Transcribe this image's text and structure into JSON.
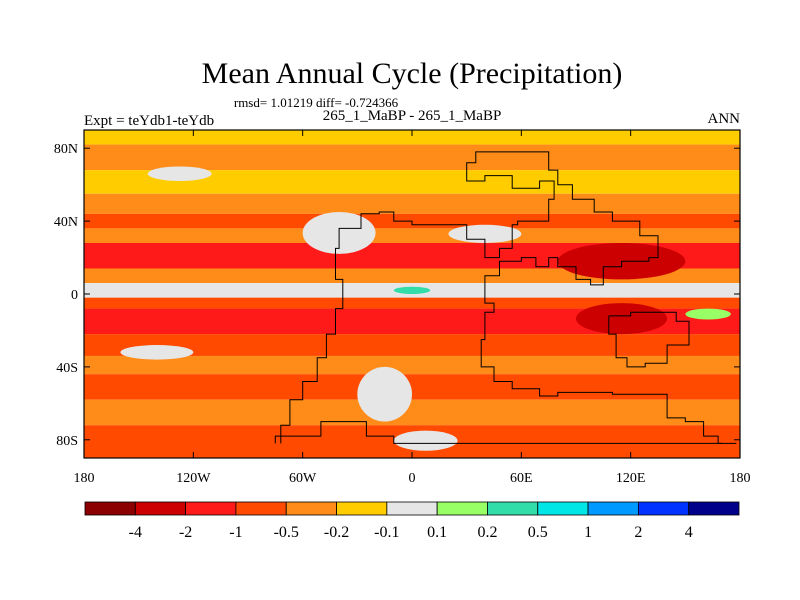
{
  "chart_data": {
    "type": "heatmap",
    "title": "Mean Annual Cycle (Precipitation)",
    "stats": "rmsd= 1.01219 diff= -0.724366",
    "left_label": "Expt = teYdb1-teYdb",
    "center_label": "265_1_MaBP - 265_1_MaBP",
    "right_label": "ANN",
    "xlim": [
      -180,
      180
    ],
    "ylim": [
      -90,
      90
    ],
    "x_ticks": [
      {
        "value": -180,
        "label": "180"
      },
      {
        "value": -120,
        "label": "120W"
      },
      {
        "value": -60,
        "label": "60W"
      },
      {
        "value": 0,
        "label": "0"
      },
      {
        "value": 60,
        "label": "60E"
      },
      {
        "value": 120,
        "label": "120E"
      },
      {
        "value": 180,
        "label": "180"
      }
    ],
    "y_ticks": [
      {
        "value": 80,
        "label": "80N"
      },
      {
        "value": 40,
        "label": "40N"
      },
      {
        "value": 0,
        "label": "0"
      },
      {
        "value": -40,
        "label": "40S"
      },
      {
        "value": -80,
        "label": "80S"
      }
    ],
    "colorbar": {
      "colors": [
        "#8b0000",
        "#cc0000",
        "#ff1a1a",
        "#ff4a00",
        "#ff8c19",
        "#ffcc00",
        "#e6e6e6",
        "#99ff66",
        "#33ddaa",
        "#00e5e5",
        "#0099ff",
        "#0033ff",
        "#00008b"
      ],
      "labels": [
        "-4",
        "-2",
        "-1",
        "-0.5",
        "-0.2",
        "-0.1",
        "0.1",
        "0.2",
        "0.5",
        "1",
        "2",
        "4"
      ]
    },
    "bands": [
      {
        "lat_from": 90,
        "lat_to": 82,
        "level": 5
      },
      {
        "lat_from": 82,
        "lat_to": 68,
        "level": 4
      },
      {
        "lat_from": 68,
        "lat_to": 55,
        "level": 5
      },
      {
        "lat_from": 55,
        "lat_to": 44,
        "level": 4
      },
      {
        "lat_from": 44,
        "lat_to": 36,
        "level": 3
      },
      {
        "lat_from": 36,
        "lat_to": 28,
        "level": 4
      },
      {
        "lat_from": 28,
        "lat_to": 14,
        "level": 2
      },
      {
        "lat_from": 14,
        "lat_to": 6,
        "level": 4
      },
      {
        "lat_from": 6,
        "lat_to": -2,
        "level": 6
      },
      {
        "lat_from": -2,
        "lat_to": -8,
        "level": 3
      },
      {
        "lat_from": -8,
        "lat_to": -22,
        "level": 2
      },
      {
        "lat_from": -22,
        "lat_to": -34,
        "level": 3
      },
      {
        "lat_from": -34,
        "lat_to": -44,
        "level": 4
      },
      {
        "lat_from": -44,
        "lat_to": -58,
        "level": 3
      },
      {
        "lat_from": -58,
        "lat_to": -72,
        "level": 4
      },
      {
        "lat_from": -72,
        "lat_to": -90,
        "level": 3
      }
    ],
    "patches": [
      {
        "lon1": -60,
        "lon2": -20,
        "lat1": 45,
        "lat2": 22,
        "level": 6
      },
      {
        "lon1": -145,
        "lon2": -110,
        "lat1": 70,
        "lat2": 62,
        "level": 6
      },
      {
        "lon1": 20,
        "lon2": 60,
        "lat1": 38,
        "lat2": 28,
        "level": 6
      },
      {
        "lon1": -30,
        "lon2": 0,
        "lat1": -40,
        "lat2": -70,
        "level": 6
      },
      {
        "lon1": 80,
        "lon2": 150,
        "lat1": 28,
        "lat2": 8,
        "level": 1
      },
      {
        "lon1": 90,
        "lon2": 140,
        "lat1": -5,
        "lat2": -22,
        "level": 1
      },
      {
        "lon1": -160,
        "lon2": -120,
        "lat1": -28,
        "lat2": -36,
        "level": 6
      },
      {
        "lon1": -10,
        "lon2": 25,
        "lat1": -75,
        "lat2": -86,
        "level": 6
      },
      {
        "lon1": 150,
        "lon2": 175,
        "lat1": -8,
        "lat2": -14,
        "level": 7
      },
      {
        "lon1": -10,
        "lon2": 10,
        "lat1": 4,
        "lat2": 0,
        "level": 8
      }
    ],
    "coastlines": [
      [
        [
          -72,
          -82
        ],
        [
          -67,
          -72
        ],
        [
          -60,
          -58
        ],
        [
          -52,
          -48
        ],
        [
          -47,
          -35
        ],
        [
          -42,
          -22
        ],
        [
          -38,
          -8
        ],
        [
          -42,
          8
        ],
        [
          -40,
          25
        ],
        [
          -28,
          36
        ],
        [
          -18,
          44
        ],
        [
          -10,
          45
        ],
        [
          0,
          40
        ],
        [
          18,
          38
        ],
        [
          30,
          38
        ],
        [
          40,
          30
        ],
        [
          48,
          20
        ],
        [
          55,
          25
        ],
        [
          58,
          38
        ],
        [
          75,
          40
        ],
        [
          78,
          52
        ],
        [
          70,
          62
        ],
        [
          55,
          58
        ],
        [
          40,
          65
        ],
        [
          30,
          62
        ],
        [
          35,
          72
        ],
        [
          55,
          78
        ],
        [
          75,
          78
        ],
        [
          80,
          68
        ],
        [
          88,
          60
        ],
        [
          100,
          52
        ],
        [
          110,
          45
        ],
        [
          125,
          40
        ],
        [
          135,
          32
        ],
        [
          130,
          20
        ],
        [
          115,
          18
        ],
        [
          105,
          15
        ],
        [
          98,
          5
        ],
        [
          90,
          8
        ],
        [
          80,
          15
        ],
        [
          75,
          20
        ],
        [
          68,
          15
        ],
        [
          60,
          20
        ],
        [
          48,
          18
        ],
        [
          40,
          10
        ],
        [
          45,
          -5
        ],
        [
          40,
          -10
        ],
        [
          38,
          -25
        ],
        [
          45,
          -40
        ],
        [
          55,
          -48
        ],
        [
          70,
          -52
        ],
        [
          80,
          -56
        ],
        [
          110,
          -54
        ],
        [
          125,
          -55
        ],
        [
          140,
          -55
        ],
        [
          150,
          -68
        ],
        [
          160,
          -70
        ],
        [
          168,
          -78
        ],
        [
          170,
          -82
        ]
      ],
      [
        [
          108,
          -12
        ],
        [
          112,
          -22
        ],
        [
          118,
          -35
        ],
        [
          128,
          -40
        ],
        [
          140,
          -38
        ],
        [
          152,
          -28
        ],
        [
          145,
          -15
        ],
        [
          135,
          -10
        ],
        [
          120,
          -10
        ],
        [
          108,
          -12
        ]
      ],
      [
        [
          -75,
          -82
        ],
        [
          -50,
          -78
        ],
        [
          -25,
          -70
        ],
        [
          -10,
          -78
        ],
        [
          10,
          -82
        ],
        [
          50,
          -82
        ],
        [
          100,
          -82
        ],
        [
          150,
          -82
        ],
        [
          178,
          -82
        ]
      ]
    ]
  }
}
